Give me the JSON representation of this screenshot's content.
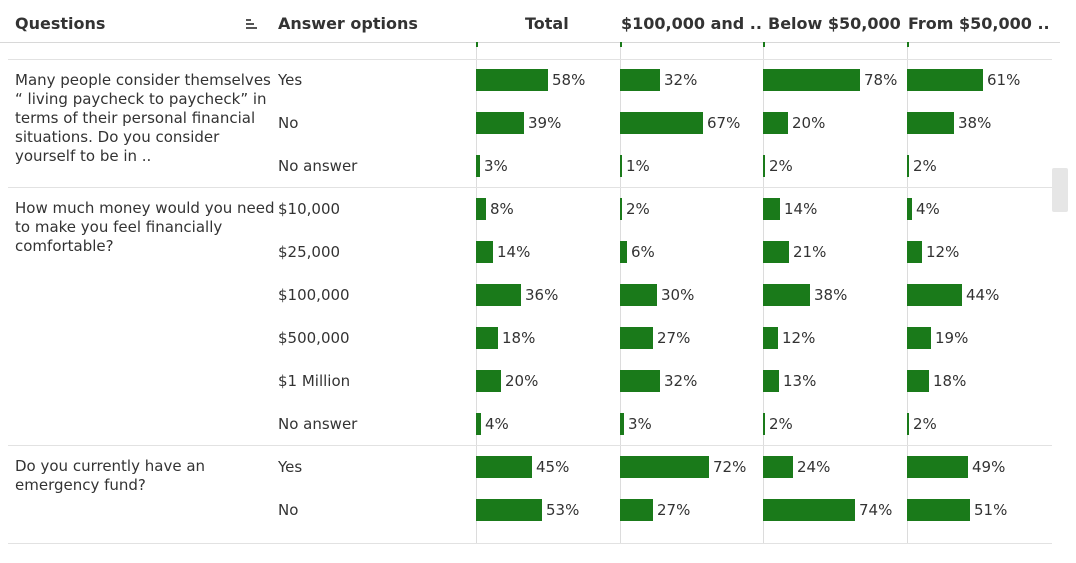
{
  "header": {
    "questions": "Questions",
    "answer_options": "Answer options",
    "total": "Total",
    "col1": "$100,000 and ..",
    "col2": "Below $50,000",
    "col3": "From $50,000 .."
  },
  "questions": [
    {
      "text": "Many people consider themselves “ living paycheck to paycheck” in terms of their personal financial situations. Do you consider yourself to be in ..",
      "options": [
        {
          "label": "Yes",
          "values": [
            58,
            32,
            78,
            61
          ],
          "labels": [
            "58%",
            "32%",
            "78%",
            "61%"
          ]
        },
        {
          "label": "No",
          "values": [
            39,
            67,
            20,
            38
          ],
          "labels": [
            "39%",
            "67%",
            "20%",
            "38%"
          ]
        },
        {
          "label": "No answer",
          "values": [
            3,
            1,
            2,
            2
          ],
          "labels": [
            "3%",
            "1%",
            "2%",
            "2%"
          ]
        }
      ]
    },
    {
      "text": "How much money would you need to make you feel financially comfortable?",
      "options": [
        {
          "label": "$10,000",
          "values": [
            8,
            2,
            14,
            4
          ],
          "labels": [
            "8%",
            "2%",
            "14%",
            "4%"
          ]
        },
        {
          "label": "$25,000",
          "values": [
            14,
            6,
            21,
            12
          ],
          "labels": [
            "14%",
            "6%",
            "21%",
            "12%"
          ]
        },
        {
          "label": "$100,000",
          "values": [
            36,
            30,
            38,
            44
          ],
          "labels": [
            "36%",
            "30%",
            "38%",
            "44%"
          ]
        },
        {
          "label": "$500,000",
          "values": [
            18,
            27,
            12,
            19
          ],
          "labels": [
            "18%",
            "27%",
            "12%",
            "19%"
          ]
        },
        {
          "label": "$1 Million",
          "values": [
            20,
            32,
            13,
            18
          ],
          "labels": [
            "20%",
            "32%",
            "13%",
            "18%"
          ]
        },
        {
          "label": "No answer",
          "values": [
            4,
            3,
            2,
            2
          ],
          "labels": [
            "4%",
            "3%",
            "2%",
            "2%"
          ]
        }
      ]
    },
    {
      "text": "Do you currently have an emergency fund?",
      "options": [
        {
          "label": "Yes",
          "values": [
            45,
            72,
            24,
            49
          ],
          "labels": [
            "45%",
            "72%",
            "24%",
            "49%"
          ]
        },
        {
          "label": "No",
          "values": [
            53,
            27,
            74,
            51
          ],
          "labels": [
            "53%",
            "27%",
            "74%",
            "51%"
          ]
        }
      ]
    }
  ],
  "colors": {
    "bar": "#1a7a1a"
  }
}
